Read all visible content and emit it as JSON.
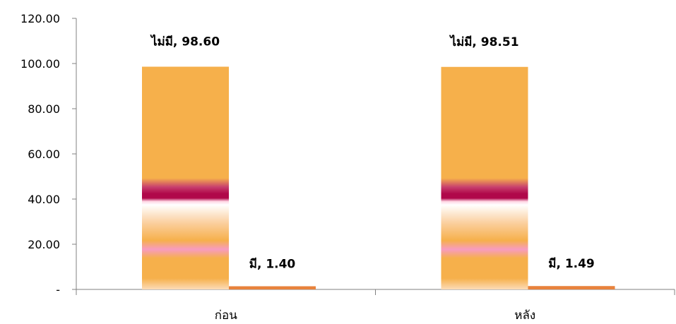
{
  "chart_data": {
    "type": "bar",
    "categories": [
      "ก่อน",
      "หลัง"
    ],
    "series": [
      {
        "name": "ไม่มี",
        "values": [
          98.6,
          98.51
        ]
      },
      {
        "name": "มี",
        "values": [
          1.4,
          1.49
        ]
      }
    ],
    "data_labels": [
      [
        "ไม่มี,  98.60",
        "ไม่มี,  98.51"
      ],
      [
        "มี,  1.40",
        "มี,  1.49"
      ]
    ],
    "ylim": [
      0,
      120
    ],
    "yticks": [
      0,
      20,
      40,
      60,
      80,
      100,
      120
    ],
    "ytick_labels": [
      "-",
      "20.00",
      "40.00",
      "60.00",
      "80.00",
      "100.00",
      "120.00"
    ],
    "xlabel": "",
    "ylabel": "",
    "title": "",
    "grid": false,
    "legend": "none",
    "colors": {
      "bar_main": "#F6B04B",
      "bar_secondary": "#E8823C",
      "band_dark": "#B0084A",
      "band_pink": "#F79BC0",
      "band_light": "#FFEBDD",
      "axis": "#808080"
    }
  }
}
